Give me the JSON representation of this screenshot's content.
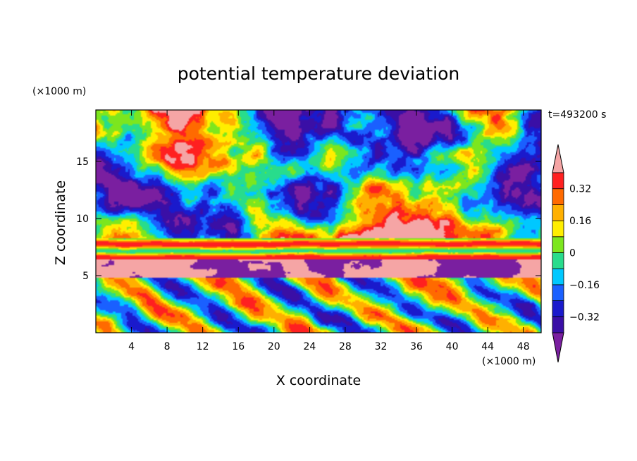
{
  "chart_data": {
    "type": "heatmap",
    "title": "potential temperature deviation",
    "xlabel": "X coordinate",
    "ylabel": "Z coordinate",
    "x_unit": "(×1000 m)",
    "y_unit": "(×1000 m)",
    "time_label": "t=493200 s",
    "xlim": [
      0,
      50
    ],
    "ylim": [
      0,
      19.5
    ],
    "x_ticks": [
      "4",
      "8",
      "12",
      "16",
      "20",
      "24",
      "28",
      "32",
      "36",
      "40",
      "44",
      "48"
    ],
    "x_tick_values": [
      4,
      8,
      12,
      16,
      20,
      24,
      28,
      32,
      36,
      40,
      44,
      48
    ],
    "y_ticks": [
      "5",
      "10",
      "15"
    ],
    "y_tick_values": [
      5,
      10,
      15
    ],
    "colorbar": {
      "labels": [
        "0.32",
        "0.16",
        "0",
        "−0.16",
        "−0.32"
      ],
      "label_values": [
        0.32,
        0.16,
        0,
        -0.16,
        -0.32
      ],
      "levels": [
        -0.4,
        -0.32,
        -0.24,
        -0.16,
        -0.08,
        0,
        0.08,
        0.16,
        0.24,
        0.32,
        0.4
      ],
      "colors": [
        "#7a1fa0",
        "#3a0fa6",
        "#1a1acc",
        "#1a60ff",
        "#00c8ff",
        "#28dc8c",
        "#7ce61e",
        "#ffee00",
        "#ffb000",
        "#ff6a00",
        "#ff2020",
        "#f5a5a5"
      ],
      "extend": "both"
    }
  }
}
